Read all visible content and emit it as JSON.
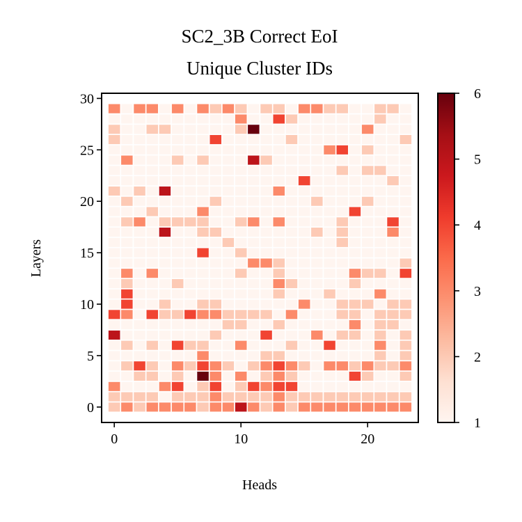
{
  "chart_data": {
    "type": "heatmap",
    "title_lines": [
      "SC2_3B Correct EoI",
      "Unique Cluster IDs"
    ],
    "xlabel": "Heads",
    "ylabel": "Layers",
    "n_heads": 24,
    "n_layers": 30,
    "x_ticks": [
      0,
      10,
      20
    ],
    "y_ticks": [
      0,
      5,
      10,
      15,
      20,
      25,
      30
    ],
    "xlim": [
      -1,
      24
    ],
    "ylim": [
      -1.5,
      30.5
    ],
    "colormap": "Reds",
    "colorbar": {
      "min": 1,
      "max": 6,
      "ticks": [
        1,
        2,
        3,
        4,
        5,
        6
      ]
    },
    "rows_comment": "values[layer][head], layer 0 first, heads 0..23",
    "values": [
      [
        2,
        3,
        2,
        3,
        3,
        3,
        3,
        2,
        3,
        3,
        5,
        3,
        2,
        3,
        2,
        3,
        3,
        3,
        3,
        3,
        3,
        3,
        3,
        3
      ],
      [
        2,
        2,
        2,
        2,
        1,
        2,
        2,
        2,
        3,
        2,
        2,
        2,
        2,
        3,
        2,
        2,
        2,
        2,
        2,
        2,
        2,
        2,
        2,
        2
      ],
      [
        3,
        1,
        1,
        1,
        3,
        4,
        1,
        2,
        4,
        1,
        2,
        4,
        3,
        4,
        4,
        1,
        1,
        1,
        1,
        1,
        1,
        1,
        1,
        1
      ],
      [
        1,
        1,
        2,
        2,
        1,
        2,
        1,
        6,
        3,
        1,
        3,
        1,
        2,
        3,
        2,
        1,
        1,
        1,
        1,
        4,
        2,
        1,
        1,
        2
      ],
      [
        1,
        2,
        4,
        2,
        1,
        3,
        2,
        4,
        3,
        2,
        1,
        2,
        3,
        4,
        3,
        2,
        1,
        3,
        3,
        2,
        3,
        2,
        2,
        3
      ],
      [
        1,
        1,
        1,
        1,
        1,
        1,
        1,
        3,
        1,
        1,
        1,
        1,
        2,
        2,
        1,
        1,
        1,
        1,
        1,
        1,
        1,
        2,
        1,
        2
      ],
      [
        1,
        2,
        1,
        2,
        1,
        4,
        2,
        2,
        1,
        1,
        3,
        1,
        1,
        1,
        2,
        1,
        1,
        4,
        1,
        1,
        1,
        3,
        1,
        2
      ],
      [
        5,
        1,
        1,
        1,
        1,
        1,
        1,
        1,
        2,
        1,
        1,
        1,
        4,
        1,
        1,
        1,
        3,
        1,
        2,
        2,
        1,
        2,
        1,
        2
      ],
      [
        1,
        1,
        1,
        1,
        1,
        1,
        1,
        1,
        1,
        2,
        2,
        1,
        1,
        2,
        1,
        1,
        1,
        1,
        1,
        3,
        1,
        2,
        2,
        1
      ],
      [
        4,
        3,
        1,
        4,
        2,
        2,
        4,
        3,
        3,
        2,
        2,
        2,
        2,
        1,
        3,
        1,
        1,
        1,
        2,
        2,
        1,
        2,
        2,
        2
      ],
      [
        1,
        4,
        1,
        1,
        2,
        1,
        1,
        2,
        2,
        1,
        1,
        1,
        1,
        1,
        1,
        3,
        1,
        1,
        2,
        2,
        2,
        1,
        2,
        2
      ],
      [
        1,
        4,
        1,
        1,
        1,
        1,
        1,
        1,
        1,
        1,
        1,
        1,
        1,
        2,
        1,
        1,
        1,
        2,
        1,
        1,
        1,
        3,
        1,
        1
      ],
      [
        1,
        2,
        1,
        1,
        1,
        2,
        1,
        1,
        1,
        1,
        1,
        1,
        1,
        3,
        2,
        1,
        1,
        1,
        1,
        2,
        1,
        1,
        1,
        1
      ],
      [
        1,
        3,
        1,
        3,
        1,
        1,
        1,
        1,
        1,
        1,
        2,
        1,
        1,
        2,
        1,
        1,
        1,
        1,
        1,
        3,
        2,
        2,
        1,
        4
      ],
      [
        1,
        1,
        1,
        1,
        1,
        1,
        1,
        1,
        1,
        1,
        1,
        3,
        3,
        2,
        1,
        1,
        1,
        1,
        1,
        1,
        1,
        1,
        1,
        2
      ],
      [
        1,
        1,
        1,
        1,
        1,
        1,
        1,
        4,
        1,
        1,
        2,
        1,
        1,
        1,
        1,
        1,
        1,
        1,
        1,
        1,
        1,
        1,
        1,
        1
      ],
      [
        1,
        1,
        1,
        1,
        1,
        1,
        1,
        1,
        1,
        2,
        1,
        1,
        1,
        1,
        1,
        1,
        1,
        1,
        2,
        1,
        1,
        1,
        1,
        1
      ],
      [
        1,
        1,
        1,
        1,
        5,
        1,
        1,
        2,
        2,
        1,
        1,
        1,
        1,
        1,
        1,
        1,
        2,
        1,
        2,
        1,
        1,
        1,
        3,
        1
      ],
      [
        1,
        2,
        3,
        1,
        2,
        2,
        2,
        2,
        1,
        1,
        2,
        3,
        1,
        3,
        1,
        1,
        1,
        1,
        2,
        1,
        1,
        1,
        4,
        1
      ],
      [
        1,
        1,
        1,
        2,
        1,
        1,
        1,
        3,
        1,
        1,
        1,
        1,
        1,
        1,
        1,
        1,
        1,
        1,
        1,
        4,
        1,
        1,
        1,
        1
      ],
      [
        1,
        2,
        1,
        1,
        1,
        1,
        1,
        1,
        2,
        1,
        1,
        1,
        1,
        1,
        1,
        1,
        2,
        1,
        1,
        1,
        2,
        1,
        1,
        1
      ],
      [
        2,
        1,
        2,
        1,
        5,
        1,
        1,
        1,
        1,
        1,
        1,
        1,
        1,
        3,
        1,
        1,
        1,
        1,
        1,
        1,
        1,
        1,
        1,
        1
      ],
      [
        1,
        1,
        1,
        1,
        1,
        1,
        1,
        1,
        1,
        1,
        1,
        1,
        1,
        1,
        1,
        4,
        1,
        1,
        1,
        1,
        1,
        1,
        2,
        1
      ],
      [
        1,
        1,
        1,
        1,
        1,
        1,
        1,
        1,
        1,
        1,
        1,
        1,
        1,
        1,
        1,
        1,
        1,
        1,
        2,
        1,
        2,
        2,
        1,
        1
      ],
      [
        1,
        3,
        1,
        1,
        1,
        2,
        1,
        2,
        1,
        1,
        1,
        5,
        2,
        1,
        1,
        1,
        1,
        1,
        1,
        1,
        1,
        1,
        1,
        1
      ],
      [
        1,
        1,
        1,
        1,
        1,
        1,
        1,
        1,
        1,
        1,
        1,
        1,
        1,
        1,
        1,
        1,
        1,
        3,
        4,
        1,
        2,
        1,
        1,
        1
      ],
      [
        2,
        1,
        1,
        1,
        1,
        1,
        1,
        1,
        4,
        1,
        1,
        1,
        1,
        1,
        2,
        1,
        1,
        1,
        1,
        1,
        1,
        1,
        1,
        2
      ],
      [
        2,
        1,
        1,
        2,
        2,
        1,
        1,
        1,
        1,
        1,
        2,
        6,
        1,
        1,
        1,
        1,
        1,
        1,
        1,
        1,
        3,
        1,
        1,
        1
      ],
      [
        1,
        1,
        1,
        1,
        1,
        1,
        1,
        1,
        1,
        1,
        3,
        1,
        1,
        4,
        2,
        1,
        1,
        1,
        1,
        1,
        1,
        2,
        1,
        1
      ],
      [
        3,
        1,
        3,
        3,
        1,
        3,
        1,
        3,
        2,
        3,
        2,
        1,
        2,
        2,
        1,
        3,
        3,
        2,
        2,
        1,
        1,
        2,
        2,
        1
      ]
    ]
  }
}
